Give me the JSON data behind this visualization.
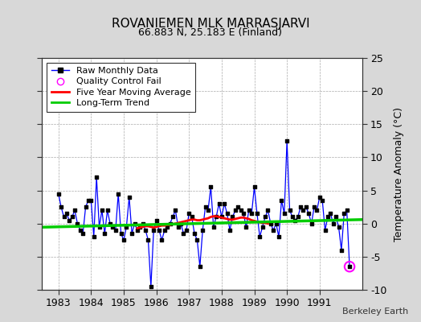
{
  "title": "ROVANIEMEN MLK MARRASJARVI",
  "subtitle": "66.883 N, 25.183 E (Finland)",
  "ylabel": "Temperature Anomaly (°C)",
  "credit": "Berkeley Earth",
  "xlim": [
    1982.5,
    1992.3
  ],
  "ylim": [
    -10,
    25
  ],
  "yticks": [
    -10,
    -5,
    0,
    5,
    10,
    15,
    20,
    25
  ],
  "xticks": [
    1983,
    1984,
    1985,
    1986,
    1987,
    1988,
    1989,
    1990,
    1991
  ],
  "bg_color": "#d8d8d8",
  "plot_bg_color": "#ffffff",
  "grid_color": "#aaaaaa",
  "raw_line_color": "#0000ff",
  "raw_marker_color": "#000000",
  "ma_color": "#ff0000",
  "trend_color": "#00cc00",
  "qc_color": "#ff00ff",
  "months": [
    1983.0,
    1983.083,
    1983.167,
    1983.25,
    1983.333,
    1983.417,
    1983.5,
    1983.583,
    1983.667,
    1983.75,
    1983.833,
    1983.917,
    1984.0,
    1984.083,
    1984.167,
    1984.25,
    1984.333,
    1984.417,
    1984.5,
    1984.583,
    1984.667,
    1984.75,
    1984.833,
    1984.917,
    1985.0,
    1985.083,
    1985.167,
    1985.25,
    1985.333,
    1985.417,
    1985.5,
    1985.583,
    1985.667,
    1985.75,
    1985.833,
    1985.917,
    1986.0,
    1986.083,
    1986.167,
    1986.25,
    1986.333,
    1986.417,
    1986.5,
    1986.583,
    1986.667,
    1986.75,
    1986.833,
    1986.917,
    1987.0,
    1987.083,
    1987.167,
    1987.25,
    1987.333,
    1987.417,
    1987.5,
    1987.583,
    1987.667,
    1987.75,
    1987.833,
    1987.917,
    1988.0,
    1988.083,
    1988.167,
    1988.25,
    1988.333,
    1988.417,
    1988.5,
    1988.583,
    1988.667,
    1988.75,
    1988.833,
    1988.917,
    1989.0,
    1989.083,
    1989.167,
    1989.25,
    1989.333,
    1989.417,
    1989.5,
    1989.583,
    1989.667,
    1989.75,
    1989.833,
    1989.917,
    1990.0,
    1990.083,
    1990.167,
    1990.25,
    1990.333,
    1990.417,
    1990.5,
    1990.583,
    1990.667,
    1990.75,
    1990.833,
    1990.917,
    1991.0,
    1991.083,
    1991.167,
    1991.25,
    1991.333,
    1991.417,
    1991.5,
    1991.583,
    1991.667,
    1991.75,
    1991.833,
    1991.917
  ],
  "values": [
    4.5,
    2.5,
    1.0,
    1.5,
    0.5,
    1.0,
    2.0,
    0.0,
    -1.0,
    -1.5,
    2.5,
    3.5,
    3.5,
    -2.0,
    7.0,
    -0.5,
    2.0,
    -1.5,
    2.0,
    0.0,
    -0.5,
    -1.0,
    4.5,
    -1.5,
    -2.5,
    -0.5,
    4.0,
    -1.5,
    0.0,
    -1.0,
    -0.5,
    0.0,
    -1.0,
    -2.5,
    -9.5,
    -1.0,
    0.5,
    -1.0,
    -2.5,
    -1.0,
    -0.5,
    0.0,
    1.0,
    2.0,
    -0.5,
    0.0,
    -1.5,
    -1.0,
    1.5,
    1.0,
    -1.5,
    -2.5,
    -6.5,
    -1.0,
    2.5,
    2.0,
    5.5,
    -0.5,
    1.0,
    3.0,
    1.0,
    3.0,
    1.5,
    -1.0,
    1.0,
    2.0,
    2.5,
    2.0,
    1.5,
    -0.5,
    2.0,
    1.5,
    5.5,
    1.5,
    -2.0,
    -0.5,
    1.0,
    2.0,
    0.0,
    -1.0,
    0.0,
    -2.0,
    3.5,
    1.5,
    12.5,
    2.0,
    1.0,
    0.5,
    1.0,
    2.5,
    2.0,
    2.5,
    1.5,
    0.0,
    2.5,
    2.0,
    4.0,
    3.5,
    -1.0,
    1.0,
    1.5,
    0.0,
    1.0,
    -0.5,
    -4.0,
    1.5,
    2.0,
    -6.5
  ],
  "qc_fail_x": [
    1991.917
  ],
  "qc_fail_y": [
    -6.5
  ],
  "ma_x": [
    1985.417,
    1985.5,
    1985.583,
    1985.667,
    1985.75,
    1985.833,
    1985.917,
    1986.0,
    1986.083,
    1986.167,
    1986.25,
    1986.333,
    1986.417,
    1986.5,
    1986.583,
    1986.667,
    1986.75,
    1986.833,
    1986.917,
    1987.0,
    1987.083,
    1987.167,
    1987.25,
    1987.333,
    1987.417,
    1987.5,
    1987.583,
    1987.667,
    1987.75,
    1987.833,
    1987.917,
    1988.0,
    1988.083,
    1988.167,
    1988.25,
    1988.333,
    1988.417,
    1988.5,
    1988.583,
    1988.667,
    1988.75,
    1988.833,
    1988.917,
    1989.0,
    1989.083,
    1989.167,
    1989.25,
    1989.333,
    1989.417
  ],
  "ma_y": [
    -0.7,
    -0.6,
    -0.5,
    -0.4,
    -0.4,
    -0.5,
    -0.6,
    -0.5,
    -0.4,
    -0.3,
    -0.3,
    -0.2,
    -0.2,
    -0.1,
    0.0,
    0.1,
    0.2,
    0.3,
    0.4,
    0.5,
    0.6,
    0.6,
    0.5,
    0.5,
    0.6,
    0.7,
    0.8,
    1.0,
    1.1,
    1.1,
    1.0,
    0.9,
    0.8,
    0.7,
    0.6,
    0.6,
    0.7,
    0.8,
    0.9,
    0.9,
    0.8,
    0.7,
    0.5,
    0.4,
    0.3,
    0.2,
    0.1,
    0.1,
    0.0
  ],
  "trend_x": [
    1982.5,
    1992.3
  ],
  "trend_y": [
    -0.55,
    0.6
  ]
}
